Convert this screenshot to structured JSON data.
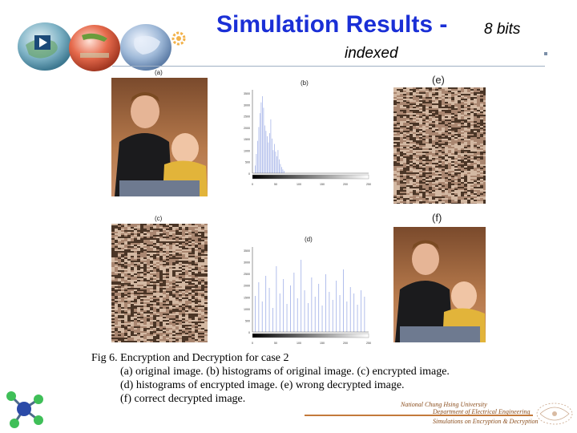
{
  "slide": {
    "title_main": "Simulation Results -",
    "title_bits": "8 bits",
    "title_sub": "indexed"
  },
  "panels": {
    "a": "(a)",
    "b": "(b)",
    "c": "(c)",
    "d": "(d)",
    "e": "(e)",
    "f": "(f)"
  },
  "hist_b": {
    "y_ticks": [
      "3500",
      "3000",
      "2500",
      "2000",
      "1500",
      "1000",
      "500",
      "0"
    ],
    "x_ticks": [
      "0",
      "50",
      "100",
      "150",
      "200",
      "250"
    ]
  },
  "hist_d": {
    "y_ticks": [
      "3500",
      "3000",
      "2500",
      "2000",
      "1500",
      "1000",
      "500",
      "0"
    ],
    "x_ticks": [
      "0",
      "50",
      "100",
      "150",
      "200",
      "250"
    ]
  },
  "caption": {
    "line1": "Fig 6. Encryption and Decryption for case 2",
    "line2": "(a) original image. (b) histograms of original image. (c) encrypted image.",
    "line3": "(d) histograms of encrypted image. (e) wrong decrypted image.",
    "line4": "(f) correct decrypted image."
  },
  "footer": {
    "line1": "National Chung Hsing University",
    "line2": "Department of Electrical Engineering",
    "line3": "Simulations on Encryption & Decryption"
  },
  "colors": {
    "title_blue": "#1a2fd6",
    "histogram_bar": "#a9b7ea",
    "footer_brown": "#c37a3b"
  },
  "icons": [
    "play-icon",
    "globe-icon",
    "gear-icon",
    "molecule-icon",
    "watermark-logo-icon"
  ]
}
